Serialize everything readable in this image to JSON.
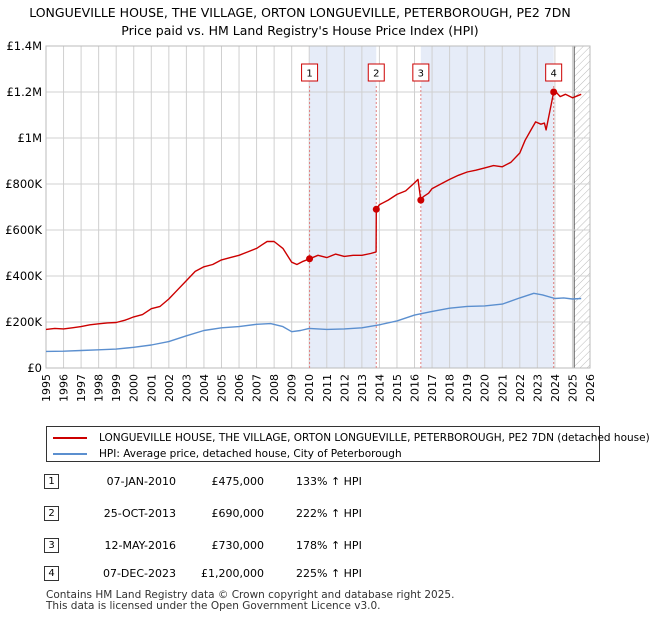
{
  "title": "LONGUEVILLE HOUSE, THE VILLAGE, ORTON LONGUEVILLE, PETERBOROUGH, PE2 7DN",
  "subtitle": "Price paid vs. HM Land Registry's House Price Index (HPI)",
  "chart_data": {
    "type": "line",
    "xlim": [
      1995,
      2026
    ],
    "ylim": [
      0,
      1400000
    ],
    "x_ticks": [
      "1995",
      "1996",
      "1997",
      "1998",
      "1999",
      "2000",
      "2001",
      "2002",
      "2003",
      "2004",
      "2005",
      "2006",
      "2007",
      "2008",
      "2009",
      "2010",
      "2011",
      "2012",
      "2013",
      "2014",
      "2015",
      "2016",
      "2017",
      "2018",
      "2019",
      "2020",
      "2021",
      "2022",
      "2023",
      "2024",
      "2025",
      "2026"
    ],
    "y_ticks": [
      {
        "value": 0,
        "label": "£0"
      },
      {
        "value": 200000,
        "label": "£200K"
      },
      {
        "value": 400000,
        "label": "£400K"
      },
      {
        "value": 600000,
        "label": "£600K"
      },
      {
        "value": 800000,
        "label": "£800K"
      },
      {
        "value": 1000000,
        "label": "£1M"
      },
      {
        "value": 1200000,
        "label": "£1.2M"
      },
      {
        "value": 1400000,
        "label": "£1.4M"
      }
    ],
    "grid": true,
    "series": [
      {
        "name": "LONGUEVILLE HOUSE, THE VILLAGE, ORTON LONGUEVILLE, PETERBOROUGH, PE2 7DN (detached house)",
        "color": "#cc0000",
        "x": [
          1995.0,
          1995.5,
          1996.0,
          1996.5,
          1997.0,
          1997.5,
          1998.0,
          1998.5,
          1999.0,
          1999.5,
          2000.0,
          2000.5,
          2001.0,
          2001.5,
          2002.0,
          2002.5,
          2003.0,
          2003.5,
          2004.0,
          2004.5,
          2005.0,
          2005.5,
          2006.0,
          2006.5,
          2007.0,
          2007.3,
          2007.6,
          2008.0,
          2008.5,
          2009.0,
          2009.3,
          2009.6,
          2010.02,
          2010.5,
          2011.0,
          2011.5,
          2012.0,
          2012.5,
          2013.0,
          2013.5,
          2013.81,
          2013.82,
          2014.0,
          2014.5,
          2015.0,
          2015.5,
          2016.0,
          2016.2,
          2016.36,
          2016.5,
          2016.8,
          2017.0,
          2017.5,
          2018.0,
          2018.5,
          2019.0,
          2019.5,
          2020.0,
          2020.5,
          2021.0,
          2021.5,
          2022.0,
          2022.3,
          2022.6,
          2022.9,
          2023.2,
          2023.4,
          2023.5,
          2023.93,
          2024.0,
          2024.3,
          2024.6,
          2025.0,
          2025.5
        ],
        "values": [
          168000,
          172000,
          170000,
          175000,
          180000,
          188000,
          192000,
          196000,
          198000,
          208000,
          222000,
          232000,
          258000,
          268000,
          300000,
          340000,
          380000,
          420000,
          440000,
          450000,
          470000,
          480000,
          490000,
          505000,
          520000,
          535000,
          550000,
          550000,
          520000,
          460000,
          450000,
          462000,
          475000,
          490000,
          480000,
          495000,
          485000,
          490000,
          490000,
          498000,
          505000,
          690000,
          710000,
          730000,
          755000,
          770000,
          805000,
          820000,
          730000,
          745000,
          760000,
          780000,
          800000,
          820000,
          838000,
          852000,
          860000,
          870000,
          880000,
          875000,
          895000,
          935000,
          990000,
          1030000,
          1070000,
          1060000,
          1065000,
          1035000,
          1200000,
          1205000,
          1180000,
          1190000,
          1175000,
          1190000
        ]
      },
      {
        "name": "HPI: Average price, detached house, City of Peterborough",
        "color": "#5b8fcf",
        "x": [
          1995.0,
          1996.0,
          1997.0,
          1998.0,
          1999.0,
          2000.0,
          2001.0,
          2002.0,
          2003.0,
          2004.0,
          2005.0,
          2006.0,
          2007.0,
          2007.8,
          2008.5,
          2009.0,
          2009.5,
          2010.0,
          2011.0,
          2012.0,
          2013.0,
          2014.0,
          2015.0,
          2016.0,
          2017.0,
          2018.0,
          2019.0,
          2020.0,
          2021.0,
          2022.0,
          2022.8,
          2023.3,
          2024.0,
          2024.5,
          2025.0,
          2025.5
        ],
        "values": [
          72000,
          73000,
          76000,
          79000,
          82000,
          90000,
          100000,
          115000,
          140000,
          163000,
          175000,
          180000,
          190000,
          193000,
          180000,
          158000,
          163000,
          172000,
          168000,
          170000,
          175000,
          188000,
          205000,
          230000,
          246000,
          260000,
          268000,
          270000,
          278000,
          305000,
          325000,
          318000,
          302000,
          305000,
          300000,
          302000
        ]
      }
    ],
    "sales": [
      {
        "num": "1",
        "x": 2010.02,
        "value": 475000
      },
      {
        "num": "2",
        "x": 2013.82,
        "value": 690000
      },
      {
        "num": "3",
        "x": 2016.36,
        "value": 730000
      },
      {
        "num": "4",
        "x": 2023.93,
        "value": 1200000
      }
    ]
  },
  "legend": {
    "property_label": "LONGUEVILLE HOUSE, THE VILLAGE, ORTON LONGUEVILLE, PETERBOROUGH, PE2 7DN (detached house)",
    "hpi_label": "HPI: Average price, detached house, City of Peterborough"
  },
  "transactions": [
    {
      "num": "1",
      "date": "07-JAN-2010",
      "price": "£475,000",
      "hpi": "133% ↑ HPI"
    },
    {
      "num": "2",
      "date": "25-OCT-2013",
      "price": "£690,000",
      "hpi": "222% ↑ HPI"
    },
    {
      "num": "3",
      "date": "12-MAY-2016",
      "price": "£730,000",
      "hpi": "178% ↑ HPI"
    },
    {
      "num": "4",
      "date": "07-DEC-2023",
      "price": "£1,200,000",
      "hpi": "225% ↑ HPI"
    }
  ],
  "footer": {
    "line1": "Contains HM Land Registry data © Crown copyright and database right 2025.",
    "line2": "This data is licensed under the Open Government Licence v3.0."
  },
  "colors": {
    "property": "#cc0000",
    "hpi": "#5b8fcf",
    "shade": "#e6ecf8",
    "sale_line": "#e08080",
    "grid": "#d0d0d0"
  }
}
